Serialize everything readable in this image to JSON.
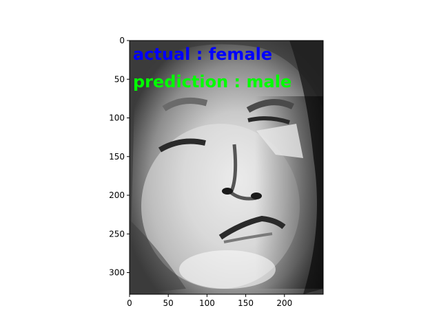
{
  "image": {
    "description_icon": "grayscale-face-photo",
    "overlay": {
      "actual_text": "actual : female",
      "prediction_text": "prediction : male",
      "actual_color": "#0000ff",
      "prediction_color": "#00ff00"
    }
  },
  "axes": {
    "x_ticks": [
      "0",
      "50",
      "100",
      "150",
      "200"
    ],
    "y_ticks": [
      "0",
      "50",
      "100",
      "150",
      "200",
      "250",
      "300"
    ],
    "x_range": [
      0,
      250
    ],
    "y_range": [
      0,
      328
    ]
  }
}
